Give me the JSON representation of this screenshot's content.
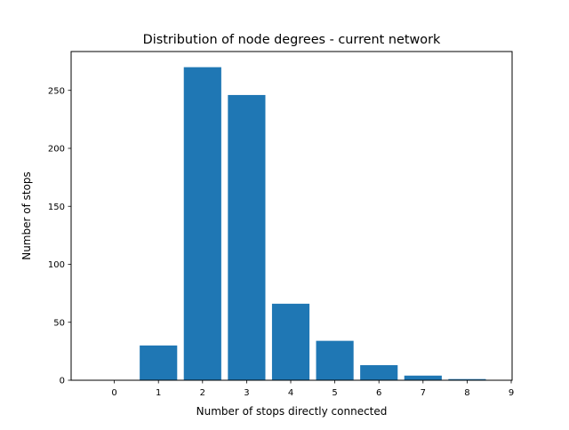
{
  "chart_data": {
    "type": "bar",
    "title": "Distribution of node degrees - current network",
    "xlabel": "Number of stops directly connected",
    "ylabel": "Number of stops",
    "categories": [
      1,
      2,
      3,
      4,
      5,
      6,
      7,
      8
    ],
    "values": [
      30,
      270,
      246,
      66,
      34,
      13,
      4,
      1
    ],
    "x_ticks": [
      0,
      1,
      2,
      3,
      4,
      5,
      6,
      7,
      8,
      9
    ],
    "y_ticks": [
      0,
      50,
      100,
      150,
      200,
      250
    ],
    "xlim": [
      -0.98,
      9.02
    ],
    "ylim": [
      0,
      283.5
    ],
    "bar_width": 0.85,
    "bar_color": "#1f77b4",
    "grid": false,
    "legend": "none"
  }
}
